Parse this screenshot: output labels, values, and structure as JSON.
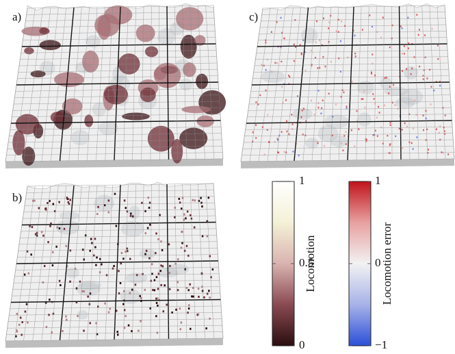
{
  "panels": [
    {
      "label": "a)",
      "style": "density"
    },
    {
      "label": "b)",
      "style": "dots"
    },
    {
      "label": "c)",
      "style": "error"
    }
  ],
  "colorbars": [
    {
      "label": "Locomotion",
      "lim": [
        0,
        1
      ],
      "ticks": [
        0,
        0.5,
        1
      ],
      "colors": [
        "#2a0d0f",
        "#8a4a52",
        "#d9b3b0",
        "#f4f1d6",
        "#ffffff"
      ]
    },
    {
      "label": "Locomotion error",
      "lim": [
        -1,
        1
      ],
      "ticks": [
        {
          "value": -1,
          "label": "−1"
        },
        0,
        1
      ],
      "colors": [
        "#2b4fd8",
        "#a7b2e8",
        "#f2f2f2",
        "#e8a0a0",
        "#c0141b"
      ]
    }
  ]
}
